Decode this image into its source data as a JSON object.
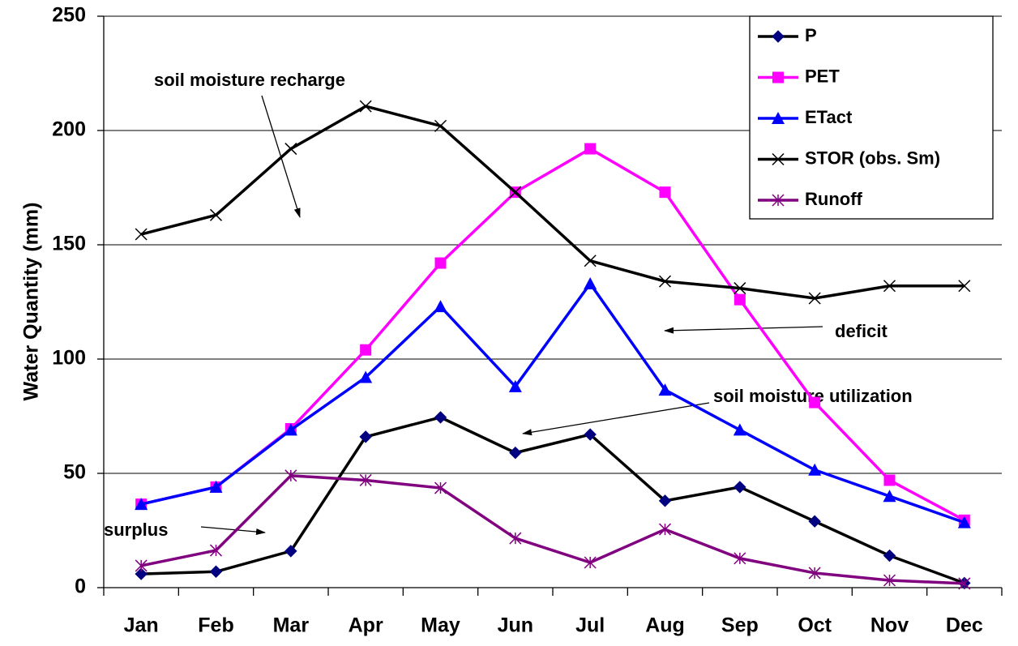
{
  "chart_data": {
    "type": "line",
    "y_label": "Water Quantity (mm)",
    "categories": [
      "Jan",
      "Feb",
      "Mar",
      "Apr",
      "May",
      "Jun",
      "Jul",
      "Aug",
      "Sep",
      "Oct",
      "Nov",
      "Dec"
    ],
    "series": [
      {
        "name": "P",
        "color": "#000000",
        "marker_color": "#000080",
        "marker": "diamond",
        "values": [
          6,
          7,
          16,
          66,
          74.5,
          59,
          67,
          38,
          44,
          29,
          14,
          2
        ]
      },
      {
        "name": "PET",
        "color": "#ff00ff",
        "marker_color": "#ff00ff",
        "marker": "square",
        "values": [
          36.5,
          44,
          69.5,
          104,
          142,
          173,
          192,
          173,
          126,
          81,
          47,
          29.5
        ]
      },
      {
        "name": "ETact",
        "color": "#0000ff",
        "marker_color": "#0000ff",
        "marker": "triangle",
        "values": [
          36.5,
          44,
          69,
          92,
          123,
          88,
          133,
          86.5,
          69,
          51.5,
          40,
          28.5
        ]
      },
      {
        "name": "STOR (obs. Sm)",
        "color": "#000000",
        "marker_color": "#000000",
        "marker": "x",
        "values": [
          154.6,
          163,
          192,
          210.6,
          202,
          173,
          143,
          134,
          131,
          126.6,
          132,
          132
        ]
      },
      {
        "name": "Runoff",
        "color": "#800080",
        "marker_color": "#800080",
        "marker": "star",
        "values": [
          9.6,
          16.3,
          49,
          47,
          43.6,
          21.6,
          11,
          25.5,
          12.8,
          6.4,
          3.2,
          1.8
        ]
      }
    ],
    "ylim": [
      0,
      250
    ],
    "yticks": [
      0,
      50,
      100,
      150,
      200,
      250
    ],
    "grid": true,
    "annotations": [
      "soil moisture recharge",
      "deficit",
      "soil moisture utilization",
      "surplus"
    ]
  }
}
